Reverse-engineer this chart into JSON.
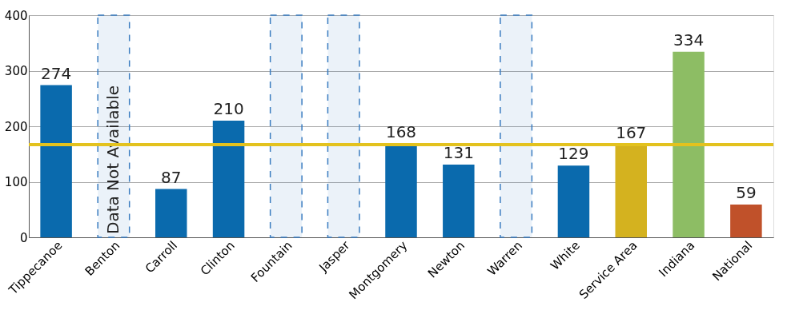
{
  "chart_data": {
    "type": "bar",
    "categories": [
      "Tippecanoe",
      "Benton",
      "Carroll",
      "Clinton",
      "Fountain",
      "Jasper",
      "Montgomery",
      "Newton",
      "Warren",
      "White",
      "Service Area",
      "Indiana",
      "National"
    ],
    "values": [
      274,
      null,
      87,
      210,
      null,
      null,
      168,
      131,
      null,
      129,
      167,
      334,
      59
    ],
    "colors": [
      "#0a6aad",
      "#0a6aad",
      "#0a6aad",
      "#0a6aad",
      "#0a6aad",
      "#0a6aad",
      "#0a6aad",
      "#0a6aad",
      "#0a6aad",
      "#0a6aad",
      "#d4b21f",
      "#8dbd64",
      "#c0512a"
    ],
    "data_labels": true,
    "ylim": [
      0,
      400
    ],
    "yticks": [
      0,
      100,
      200,
      300,
      400
    ],
    "grid": "y",
    "ref_lines": [
      {
        "axis": "y",
        "value": 167,
        "color": "#e3c21e"
      }
    ],
    "bands": [
      {
        "axis": "x",
        "from": "Benton",
        "to": "Benton",
        "label": "Data Not Available",
        "color": "#3a7cc0"
      },
      {
        "axis": "x",
        "from": "Fountain",
        "to": "Fountain",
        "color": "#3a7cc0"
      },
      {
        "axis": "x",
        "from": "Jasper",
        "to": "Jasper",
        "color": "#3a7cc0"
      },
      {
        "axis": "x",
        "from": "Warren",
        "to": "Warren",
        "color": "#3a7cc0"
      }
    ]
  }
}
